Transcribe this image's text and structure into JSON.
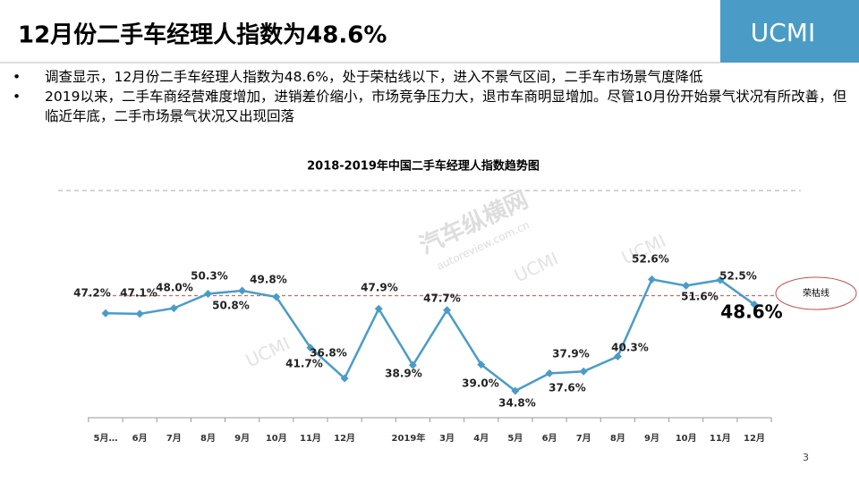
{
  "slide": {
    "title": "12月份二手车经理人指数为48.6%",
    "brand": "UCMI",
    "page_number": "3",
    "bullets": [
      "调查显示，12月份二手车经理人指数为48.6%，处于荣枯线以下，进入不景气区间，二手车市场景气度降低",
      "2019以来，二手车商经营难度增加，进销差价缩小，市场竞争压力大，退市车商明显增加。尽管10月份开始景气状况有所改善，但临近年底，二手市场景气状况又出现回落"
    ],
    "watermarks": [
      "汽车纵横网",
      "autoreview.com.cn",
      "UCMI"
    ]
  },
  "chart_data": {
    "type": "line",
    "title": "2018-2019年中国二手车经理人指数趋势图",
    "categories": [
      "5月…",
      "6月",
      "7月",
      "8月",
      "9月",
      "10月",
      "11月",
      "12月",
      null,
      "2019年",
      "3月",
      "4月",
      "5月",
      "6月",
      "7月",
      "8月",
      "9月",
      "10月",
      "11月",
      "12月"
    ],
    "series": [
      {
        "name": "二手车经理人指数",
        "color": "#4a9cc7",
        "values": [
          47.2,
          47.1,
          48.0,
          50.3,
          50.8,
          49.8,
          41.7,
          36.8,
          47.9,
          38.9,
          47.7,
          39.0,
          34.8,
          37.6,
          37.9,
          40.3,
          52.6,
          51.6,
          52.5,
          48.6
        ],
        "value_labels": [
          "47.2%",
          "47.1%",
          "48.0%",
          "50.3%",
          "50.8%",
          "49.8%",
          "41.7%",
          "36.8%",
          "47.9%",
          "38.9%",
          "47.7%",
          "39.0%",
          "34.8%",
          "37.6%",
          "37.9%",
          "40.3%",
          "52.6%",
          "51.6%",
          "52.5%",
          "48.6%"
        ]
      }
    ],
    "ylim": [
      30,
      55
    ],
    "reference_line": {
      "value": 50,
      "label": "荣枯线",
      "color": "#c0504d"
    }
  }
}
